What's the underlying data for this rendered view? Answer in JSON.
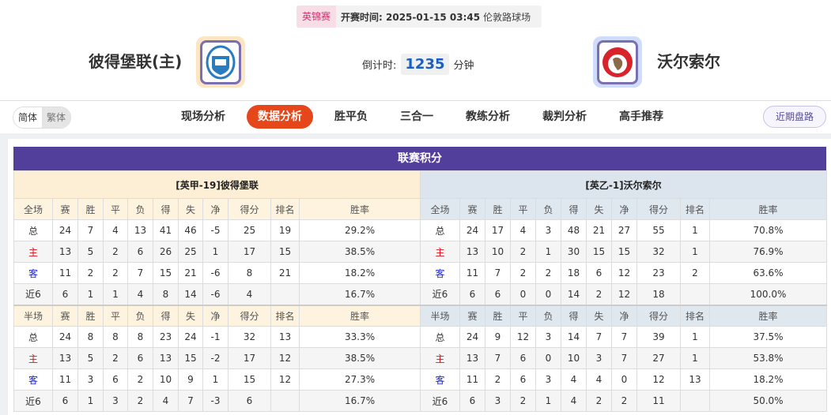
{
  "match": {
    "league": "英锦赛",
    "kickoff": "开赛时间: 2025-01-15 03:45",
    "venue": "伦敦路球场"
  },
  "home": {
    "name": "彼得堡联(主)",
    "logo": "peterborough-crest"
  },
  "away": {
    "name": "沃尔索尔",
    "logo": "walsall-crest"
  },
  "countdown": {
    "label": "倒计时:",
    "value": "1235",
    "unit": "分钟"
  },
  "lang": {
    "simplified": "简体",
    "traditional": "繁体"
  },
  "tabs": [
    {
      "label": "现场分析"
    },
    {
      "label": "数据分析",
      "active": true
    },
    {
      "label": "胜平负"
    },
    {
      "label": "三合一"
    },
    {
      "label": "教练分析"
    },
    {
      "label": "裁判分析"
    },
    {
      "label": "高手推荐"
    }
  ],
  "recent_button": "近期盘路",
  "colors": {
    "accent": "#e5461a",
    "header": "#523f9c",
    "home_row": "#e0101a",
    "away_row": "#1d24d6"
  },
  "standings": {
    "title": "联赛积分",
    "columns": [
      "赛",
      "胜",
      "平",
      "负",
      "得",
      "失",
      "净",
      "得分",
      "排名",
      "胜率"
    ],
    "teams": [
      {
        "header": "[英甲-19]彼得堡联",
        "sections": [
          {
            "label": "全场",
            "rows": [
              [
                "总",
                "24",
                "7",
                "4",
                "13",
                "41",
                "46",
                "-5",
                "25",
                "19",
                "29.2%"
              ],
              [
                "主",
                "13",
                "5",
                "2",
                "6",
                "26",
                "25",
                "1",
                "17",
                "15",
                "38.5%"
              ],
              [
                "客",
                "11",
                "2",
                "2",
                "7",
                "15",
                "21",
                "-6",
                "8",
                "21",
                "18.2%"
              ],
              [
                "近6",
                "6",
                "1",
                "1",
                "4",
                "8",
                "14",
                "-6",
                "4",
                "",
                "16.7%"
              ]
            ]
          },
          {
            "label": "半场",
            "rows": [
              [
                "总",
                "24",
                "8",
                "8",
                "8",
                "23",
                "24",
                "-1",
                "32",
                "13",
                "33.3%"
              ],
              [
                "主",
                "13",
                "5",
                "2",
                "6",
                "13",
                "15",
                "-2",
                "17",
                "12",
                "38.5%"
              ],
              [
                "客",
                "11",
                "3",
                "6",
                "2",
                "10",
                "9",
                "1",
                "15",
                "12",
                "27.3%"
              ],
              [
                "近6",
                "6",
                "1",
                "3",
                "2",
                "4",
                "7",
                "-3",
                "6",
                "",
                "16.7%"
              ]
            ]
          }
        ]
      },
      {
        "header": "[英乙-1]沃尔索尔",
        "sections": [
          {
            "label": "全场",
            "rows": [
              [
                "总",
                "24",
                "17",
                "4",
                "3",
                "48",
                "21",
                "27",
                "55",
                "1",
                "70.8%"
              ],
              [
                "主",
                "13",
                "10",
                "2",
                "1",
                "30",
                "15",
                "15",
                "32",
                "1",
                "76.9%"
              ],
              [
                "客",
                "11",
                "7",
                "2",
                "2",
                "18",
                "6",
                "12",
                "23",
                "2",
                "63.6%"
              ],
              [
                "近6",
                "6",
                "6",
                "0",
                "0",
                "14",
                "2",
                "12",
                "18",
                "",
                "100.0%"
              ]
            ]
          },
          {
            "label": "半场",
            "rows": [
              [
                "总",
                "24",
                "9",
                "12",
                "3",
                "14",
                "7",
                "7",
                "39",
                "1",
                "37.5%"
              ],
              [
                "主",
                "13",
                "7",
                "6",
                "0",
                "10",
                "3",
                "7",
                "27",
                "1",
                "53.8%"
              ],
              [
                "客",
                "11",
                "2",
                "6",
                "3",
                "4",
                "4",
                "0",
                "12",
                "13",
                "18.2%"
              ],
              [
                "近6",
                "6",
                "3",
                "2",
                "1",
                "4",
                "2",
                "2",
                "11",
                "",
                "50.0%"
              ]
            ]
          }
        ]
      }
    ]
  }
}
